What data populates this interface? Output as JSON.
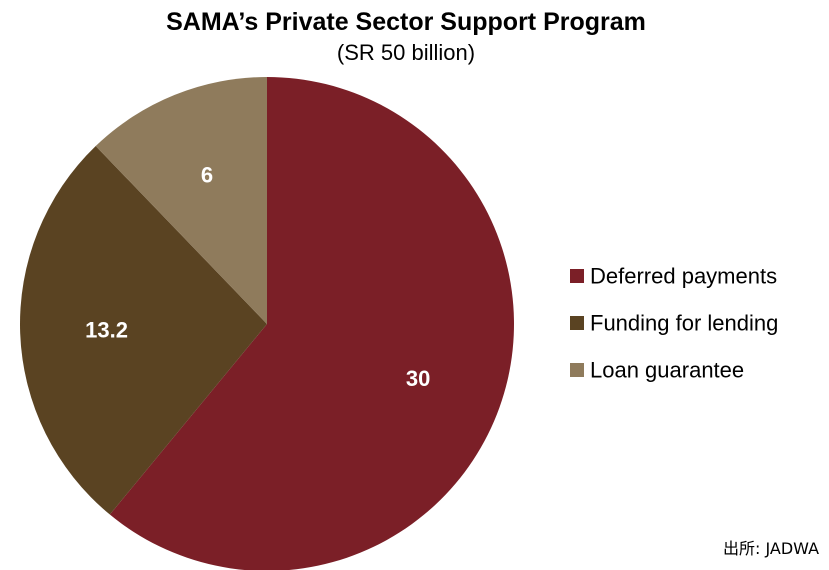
{
  "chart_data": {
    "type": "pie",
    "title": "SAMA’s Private Sector Support Program",
    "subtitle": "(SR 50 billion)",
    "categories": [
      "Deferred payments",
      "Funding for lending",
      "Loan guarantee"
    ],
    "values": [
      30,
      13.2,
      6
    ],
    "value_labels": [
      "30",
      "13.2",
      "6"
    ],
    "colors": [
      "#7b1f27",
      "#5a4322",
      "#8f7b5c"
    ],
    "start_angle_deg": 0,
    "direction": "clockwise",
    "legend_position": "right",
    "source": "出所: JADWA"
  }
}
